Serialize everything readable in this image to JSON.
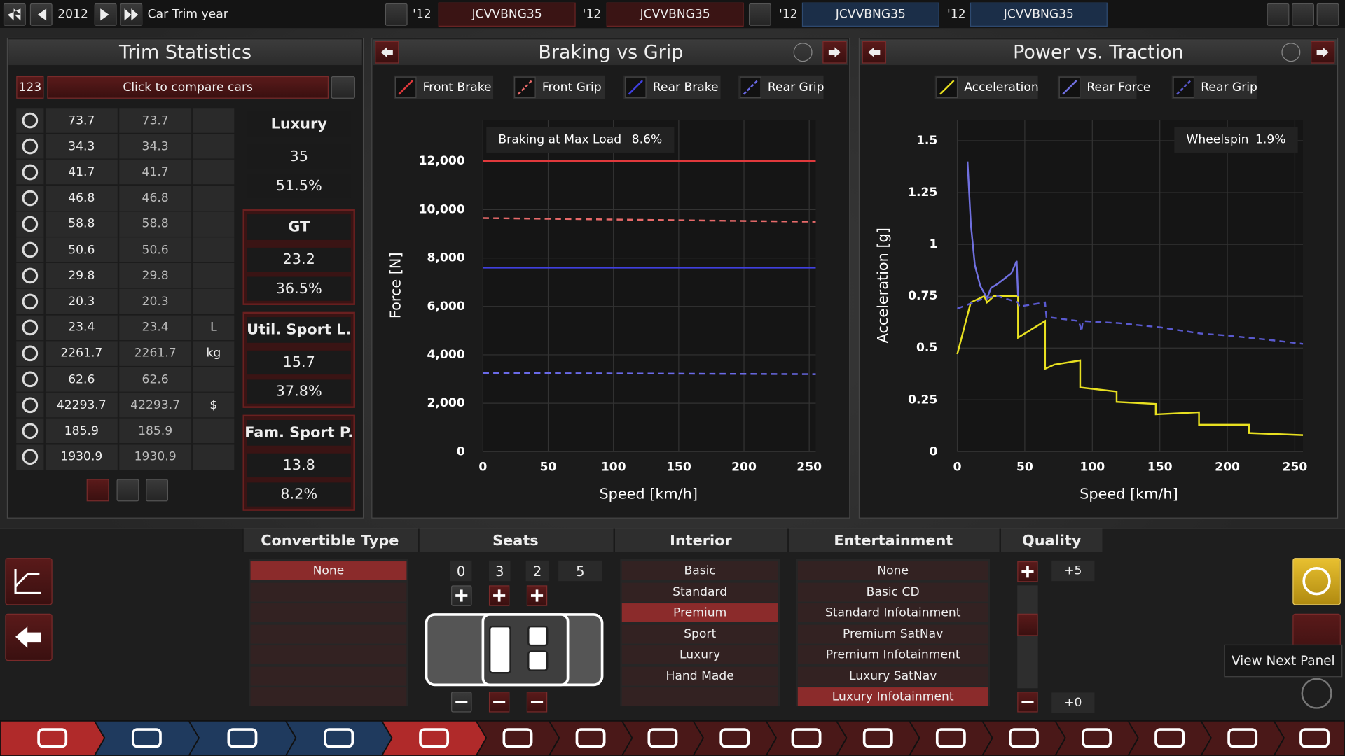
{
  "top_bar": {
    "year": "2012",
    "label": "Car Trim year",
    "compare": [
      {
        "year": "'12",
        "trim": "JCVVBNG35"
      },
      {
        "year": "'12",
        "trim": "JCVVBNG35"
      },
      {
        "year": "'12",
        "trim": "JCVVBNG35"
      },
      {
        "year": "'12",
        "trim": "JCVVBNG35"
      }
    ]
  },
  "trim_statistics": {
    "title": "Trim Statistics",
    "count": "123",
    "compare_button": "Click to compare cars",
    "rows": [
      {
        "value": "73.7",
        "compare": "73.7"
      },
      {
        "value": "34.3",
        "compare": "34.3"
      },
      {
        "value": "41.7",
        "compare": "41.7"
      },
      {
        "value": "46.8",
        "compare": "46.8"
      },
      {
        "value": "58.8",
        "compare": "58.8"
      },
      {
        "value": "50.6",
        "compare": "50.6"
      },
      {
        "value": "29.8",
        "compare": "29.8"
      },
      {
        "value": "20.3",
        "compare": "20.3"
      },
      {
        "value": "23.4",
        "compare": "23.4",
        "unit": "L"
      },
      {
        "value": "2261.7",
        "compare": "2261.7",
        "unit": "kg"
      },
      {
        "value": "62.6",
        "compare": "62.6"
      },
      {
        "value": "42293.7",
        "compare": "42293.7",
        "unit": "$"
      },
      {
        "value": "185.9",
        "compare": "185.9"
      },
      {
        "value": "1930.9",
        "compare": "1930.9"
      }
    ],
    "markets": [
      {
        "name": "Luxury",
        "score": "35",
        "share": "51.5%"
      },
      {
        "name": "GT",
        "score": "23.2",
        "share": "36.5%"
      },
      {
        "name": "Util. Sport L.",
        "score": "15.7",
        "share": "37.8%"
      },
      {
        "name": "Fam. Sport P.",
        "score": "13.8",
        "share": "8.2%"
      }
    ]
  },
  "chart_data": [
    {
      "type": "line",
      "title": "Braking vs Grip",
      "annotation": {
        "label": "Braking at Max Load",
        "value": "8.6%"
      },
      "x_label": "Speed [km/h]",
      "y_label": "Force [N]",
      "xlim": [
        0,
        255
      ],
      "ylim": [
        0,
        13700
      ],
      "xticks": [
        0,
        50,
        100,
        150,
        200,
        250
      ],
      "yticks": [
        0,
        {
          "value": 2000,
          "label": "2,000"
        },
        {
          "value": 4000,
          "label": "4,000"
        },
        {
          "value": 6000,
          "label": "6,000"
        },
        {
          "value": 8000,
          "label": "8,000"
        },
        {
          "value": 10000,
          "label": "10,000"
        },
        {
          "value": 12000,
          "label": "12,000"
        }
      ],
      "grid": true,
      "series": [
        {
          "name": "Front Brake",
          "color": "#e0393c",
          "dashed": false,
          "x": [
            0,
            255
          ],
          "values": [
            12000,
            12000
          ]
        },
        {
          "name": "Front Grip",
          "color": "#e86a6a",
          "dashed": true,
          "x": [
            0,
            255
          ],
          "values": [
            9650,
            9500
          ]
        },
        {
          "name": "Rear Brake",
          "color": "#4040e0",
          "dashed": false,
          "x": [
            0,
            255
          ],
          "values": [
            7600,
            7600
          ]
        },
        {
          "name": "Rear Grip",
          "color": "#6a6ae8",
          "dashed": true,
          "x": [
            0,
            255
          ],
          "values": [
            3250,
            3200
          ]
        }
      ]
    },
    {
      "type": "line",
      "title": "Power vs. Traction",
      "annotation": {
        "label": "Wheelspin",
        "value": "1.9%"
      },
      "x_label": "Speed [km/h]",
      "y_label": "Acceleration [g]",
      "xlim": [
        0,
        256
      ],
      "ylim": [
        0,
        1.6
      ],
      "xticks": [
        0,
        50,
        100,
        150,
        200,
        250
      ],
      "yticks": [
        0,
        0.25,
        0.5,
        0.75,
        1,
        1.25,
        1.5
      ],
      "grid": true,
      "series": [
        {
          "name": "Acceleration",
          "color": "#e8e020",
          "dashed": false,
          "x": [
            0,
            10,
            20,
            22,
            27,
            45,
            45,
            65,
            65,
            72,
            91,
            91,
            118,
            118,
            147,
            147,
            179,
            179,
            216,
            216,
            256
          ],
          "values": [
            0.47,
            0.72,
            0.75,
            0.72,
            0.75,
            0.75,
            0.55,
            0.63,
            0.4,
            0.42,
            0.44,
            0.31,
            0.29,
            0.24,
            0.23,
            0.18,
            0.19,
            0.13,
            0.13,
            0.09,
            0.08
          ]
        },
        {
          "name": "Rear Force",
          "color": "#7070e0",
          "dashed": false,
          "x": [
            7.6,
            10,
            13,
            17,
            22,
            25,
            30,
            40,
            44,
            45
          ],
          "values": [
            1.4,
            1.1,
            0.9,
            0.8,
            0.74,
            0.79,
            0.81,
            0.86,
            0.92,
            0.75
          ]
        },
        {
          "name": "Rear Grip",
          "color": "#5a5ad0",
          "dashed": true,
          "x": [
            0,
            20,
            30,
            45,
            46,
            65,
            66,
            90,
            92,
            93,
            120,
            150,
            180,
            200,
            230,
            256
          ],
          "values": [
            0.69,
            0.74,
            0.75,
            0.72,
            0.7,
            0.72,
            0.65,
            0.63,
            0.58,
            0.63,
            0.62,
            0.6,
            0.57,
            0.56,
            0.54,
            0.52
          ]
        }
      ]
    }
  ],
  "trim_options": {
    "convertible_type": {
      "title": "Convertible Type",
      "options": [
        "None"
      ],
      "selected": 0
    },
    "seats": {
      "title": "Seats",
      "counts": [
        "0",
        "3",
        "2",
        "5"
      ]
    },
    "interior": {
      "title": "Interior",
      "options": [
        "Basic",
        "Standard",
        "Premium",
        "Sport",
        "Luxury",
        "Hand Made"
      ],
      "selected": 2
    },
    "entertainment": {
      "title": "Entertainment",
      "options": [
        "None",
        "Basic CD",
        "Standard Infotainment",
        "Premium SatNav",
        "Premium Infotainment",
        "Luxury SatNav",
        "Luxury Infotainment"
      ],
      "selected": 6
    },
    "quality": {
      "title": "Quality",
      "max": "+5",
      "current": "+0"
    }
  },
  "tooltip": "View Next Panel"
}
